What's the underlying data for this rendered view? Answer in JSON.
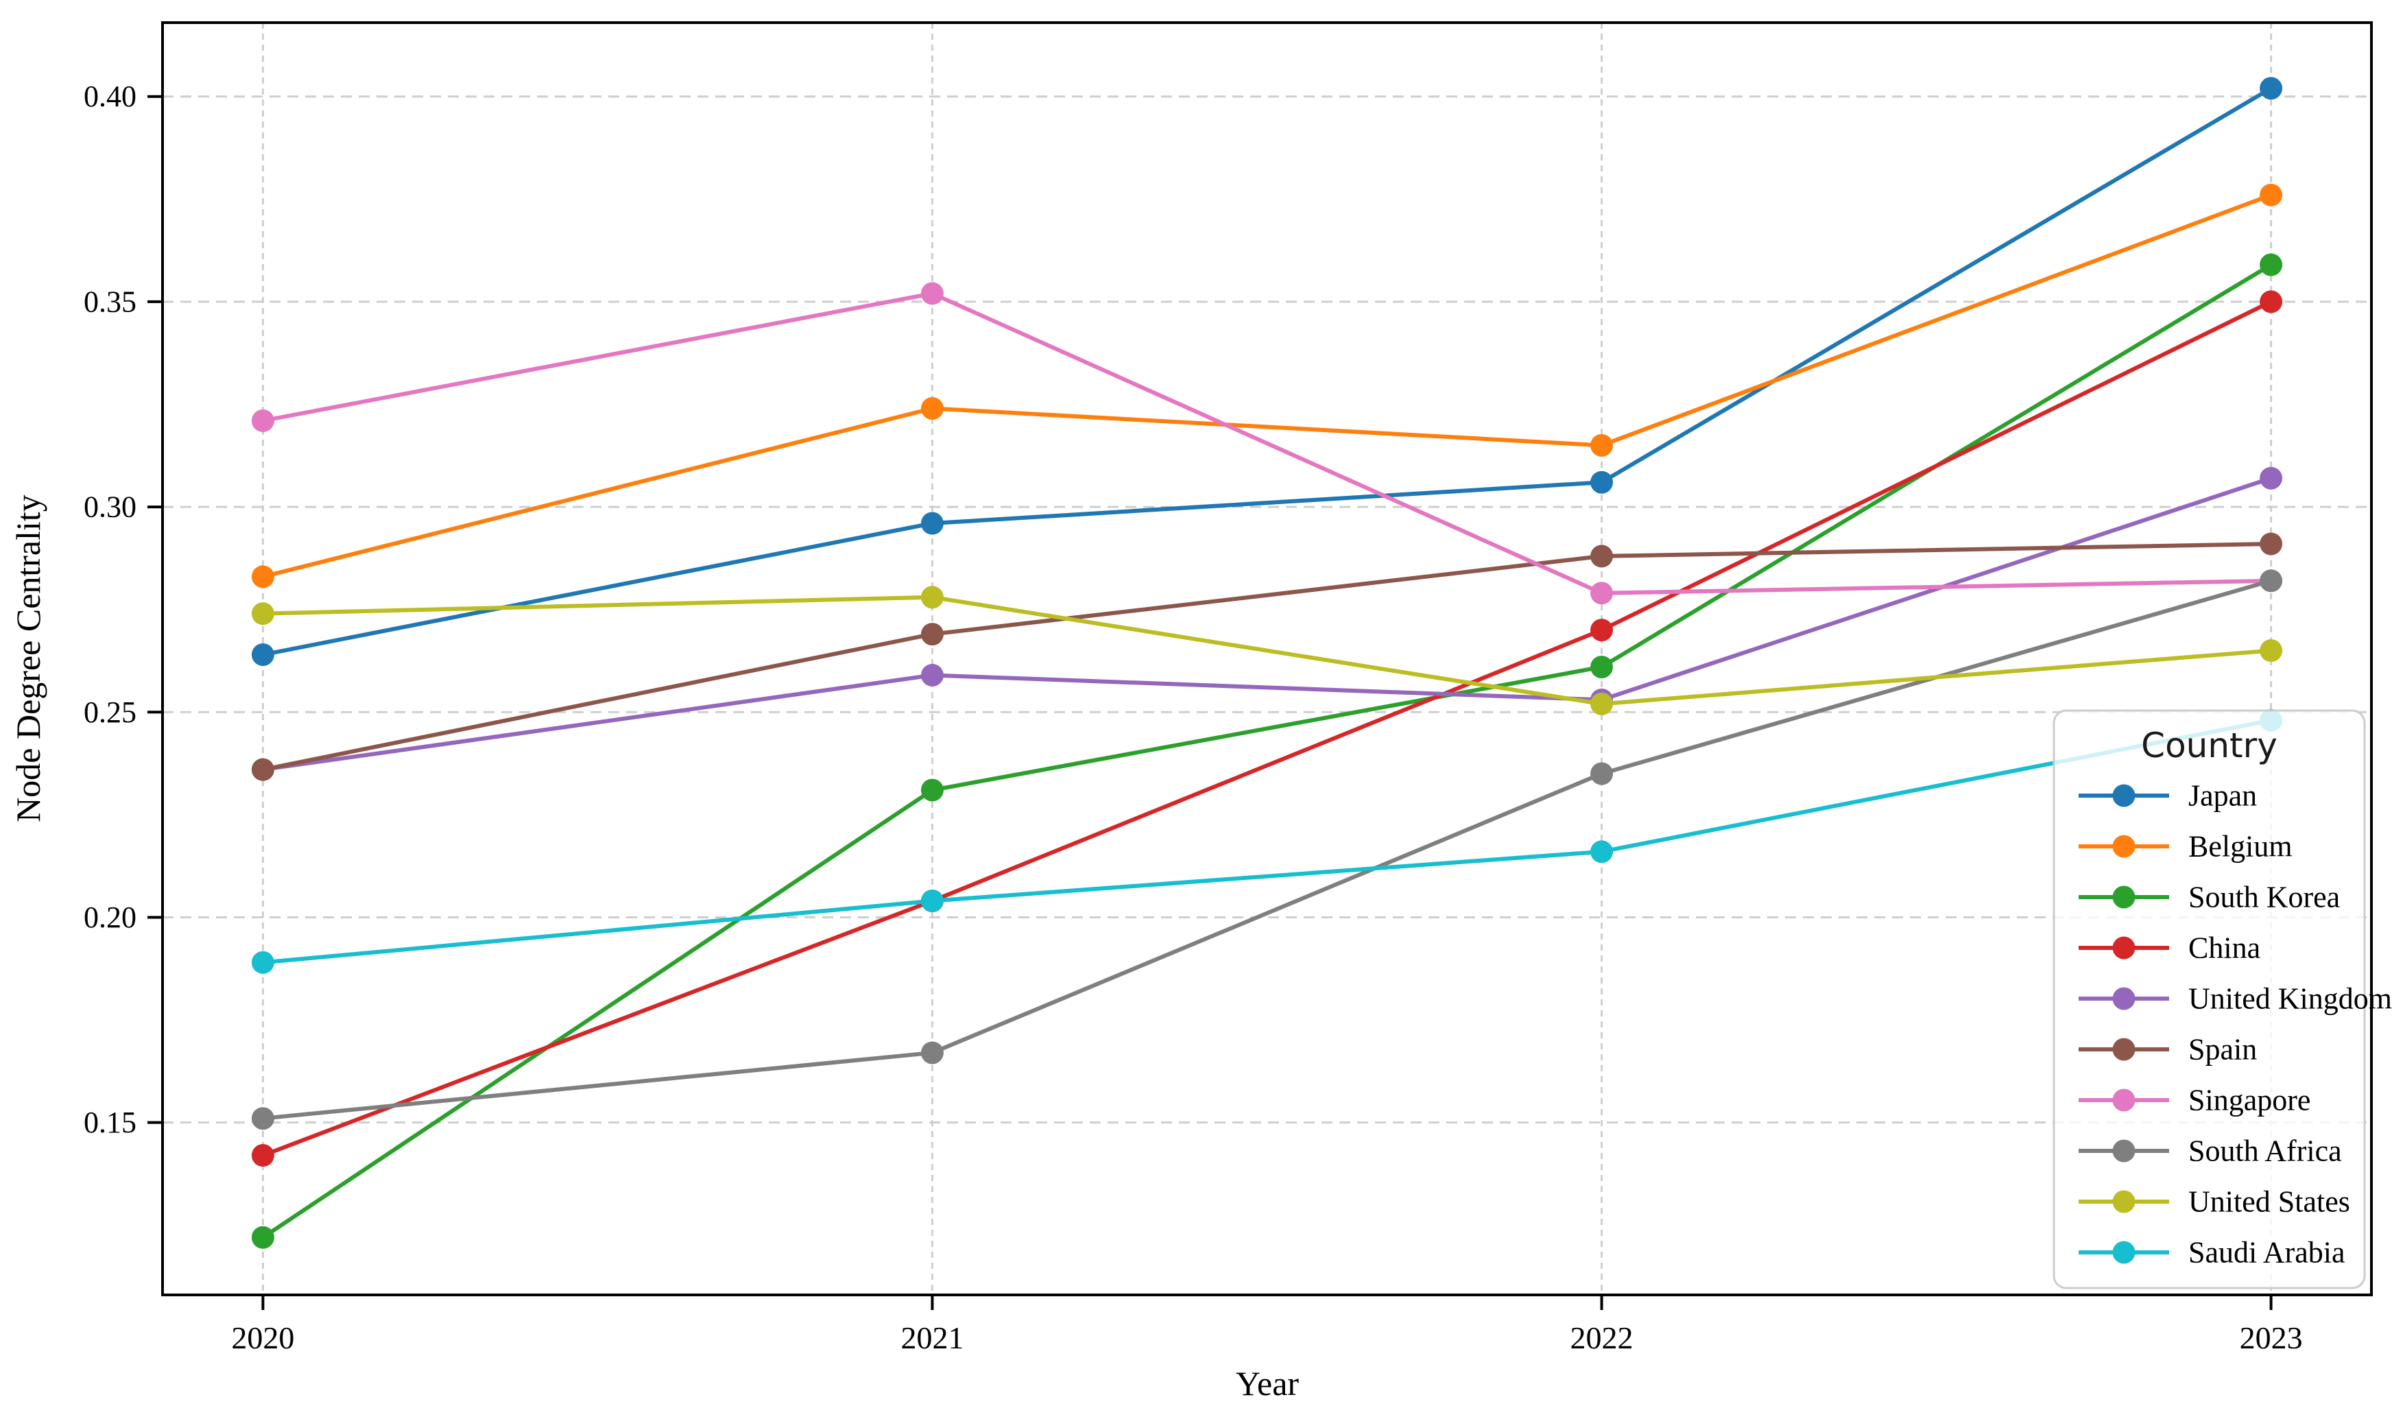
{
  "figure": {
    "background": "#ffffff",
    "grid_color": "#c9c9c9",
    "spine_color": "#000000"
  },
  "chart_data": {
    "type": "line",
    "title": "",
    "xlabel": "Year",
    "ylabel": "Node Degree Centrality",
    "x": [
      2020,
      2021,
      2022,
      2023
    ],
    "xtick_labels": [
      "2020",
      "2021",
      "2022",
      "2023"
    ],
    "yticks": [
      0.15,
      0.2,
      0.25,
      0.3,
      0.35,
      0.4
    ],
    "ytick_labels": [
      "0.15",
      "0.20",
      "0.25",
      "0.30",
      "0.35",
      "0.40"
    ],
    "xlim": [
      2019.85,
      2023.15
    ],
    "ylim": [
      0.108,
      0.418
    ],
    "grid": true,
    "legend_title": "Country",
    "legend_position": "lower right",
    "series": [
      {
        "name": "Japan",
        "color": "#1f77b4",
        "values": [
          0.264,
          0.296,
          0.306,
          0.402
        ]
      },
      {
        "name": "Belgium",
        "color": "#ff7f0e",
        "values": [
          0.283,
          0.324,
          0.315,
          0.376
        ]
      },
      {
        "name": "South Korea",
        "color": "#2ca02c",
        "values": [
          0.122,
          0.231,
          0.261,
          0.359
        ]
      },
      {
        "name": "China",
        "color": "#d62728",
        "values": [
          0.142,
          0.204,
          0.27,
          0.35
        ]
      },
      {
        "name": "United Kingdom",
        "color": "#9467bd",
        "values": [
          0.236,
          0.259,
          0.253,
          0.307
        ]
      },
      {
        "name": "Spain",
        "color": "#8c564b",
        "values": [
          0.236,
          0.269,
          0.288,
          0.291
        ]
      },
      {
        "name": "Singapore",
        "color": "#e377c2",
        "values": [
          0.321,
          0.352,
          0.279,
          0.282
        ]
      },
      {
        "name": "South Africa",
        "color": "#7f7f7f",
        "values": [
          0.151,
          0.167,
          0.235,
          0.282
        ]
      },
      {
        "name": "United States",
        "color": "#bcbd22",
        "values": [
          0.274,
          0.278,
          0.252,
          0.265
        ]
      },
      {
        "name": "Saudi Arabia",
        "color": "#17becf",
        "values": [
          0.189,
          0.204,
          0.216,
          0.248
        ]
      }
    ]
  }
}
